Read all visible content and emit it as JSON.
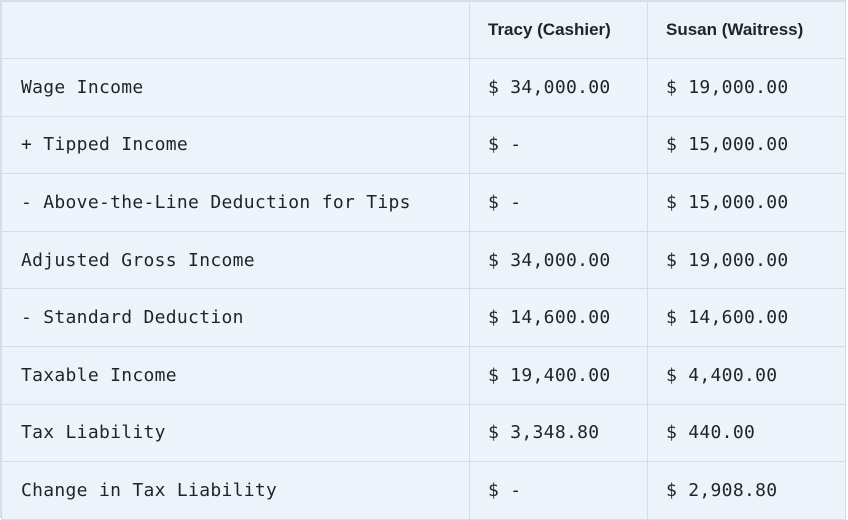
{
  "table": {
    "headers": [
      "",
      "Tracy (Cashier)",
      "Susan (Waitress)"
    ],
    "rows": [
      {
        "label": "Wage Income",
        "tracy": "$ 34,000.00",
        "susan": "$ 19,000.00"
      },
      {
        "label": "+ Tipped Income",
        "tracy": "$ -",
        "susan": "$ 15,000.00"
      },
      {
        "label": "- Above-the-Line Deduction for Tips",
        "tracy": "$ -",
        "susan": "$ 15,000.00"
      },
      {
        "label": "Adjusted Gross Income",
        "tracy": "$ 34,000.00",
        "susan": "$ 19,000.00"
      },
      {
        "label": "- Standard Deduction",
        "tracy": "$ 14,600.00",
        "susan": "$ 14,600.00"
      },
      {
        "label": "Taxable Income",
        "tracy": "$ 19,400.00",
        "susan": "$ 4,400.00"
      },
      {
        "label": "Tax Liability",
        "tracy": "$ 3,348.80",
        "susan": "$ 440.00"
      },
      {
        "label": "Change in Tax Liability",
        "tracy": "$ -",
        "susan": "$ 2,908.80"
      }
    ]
  }
}
